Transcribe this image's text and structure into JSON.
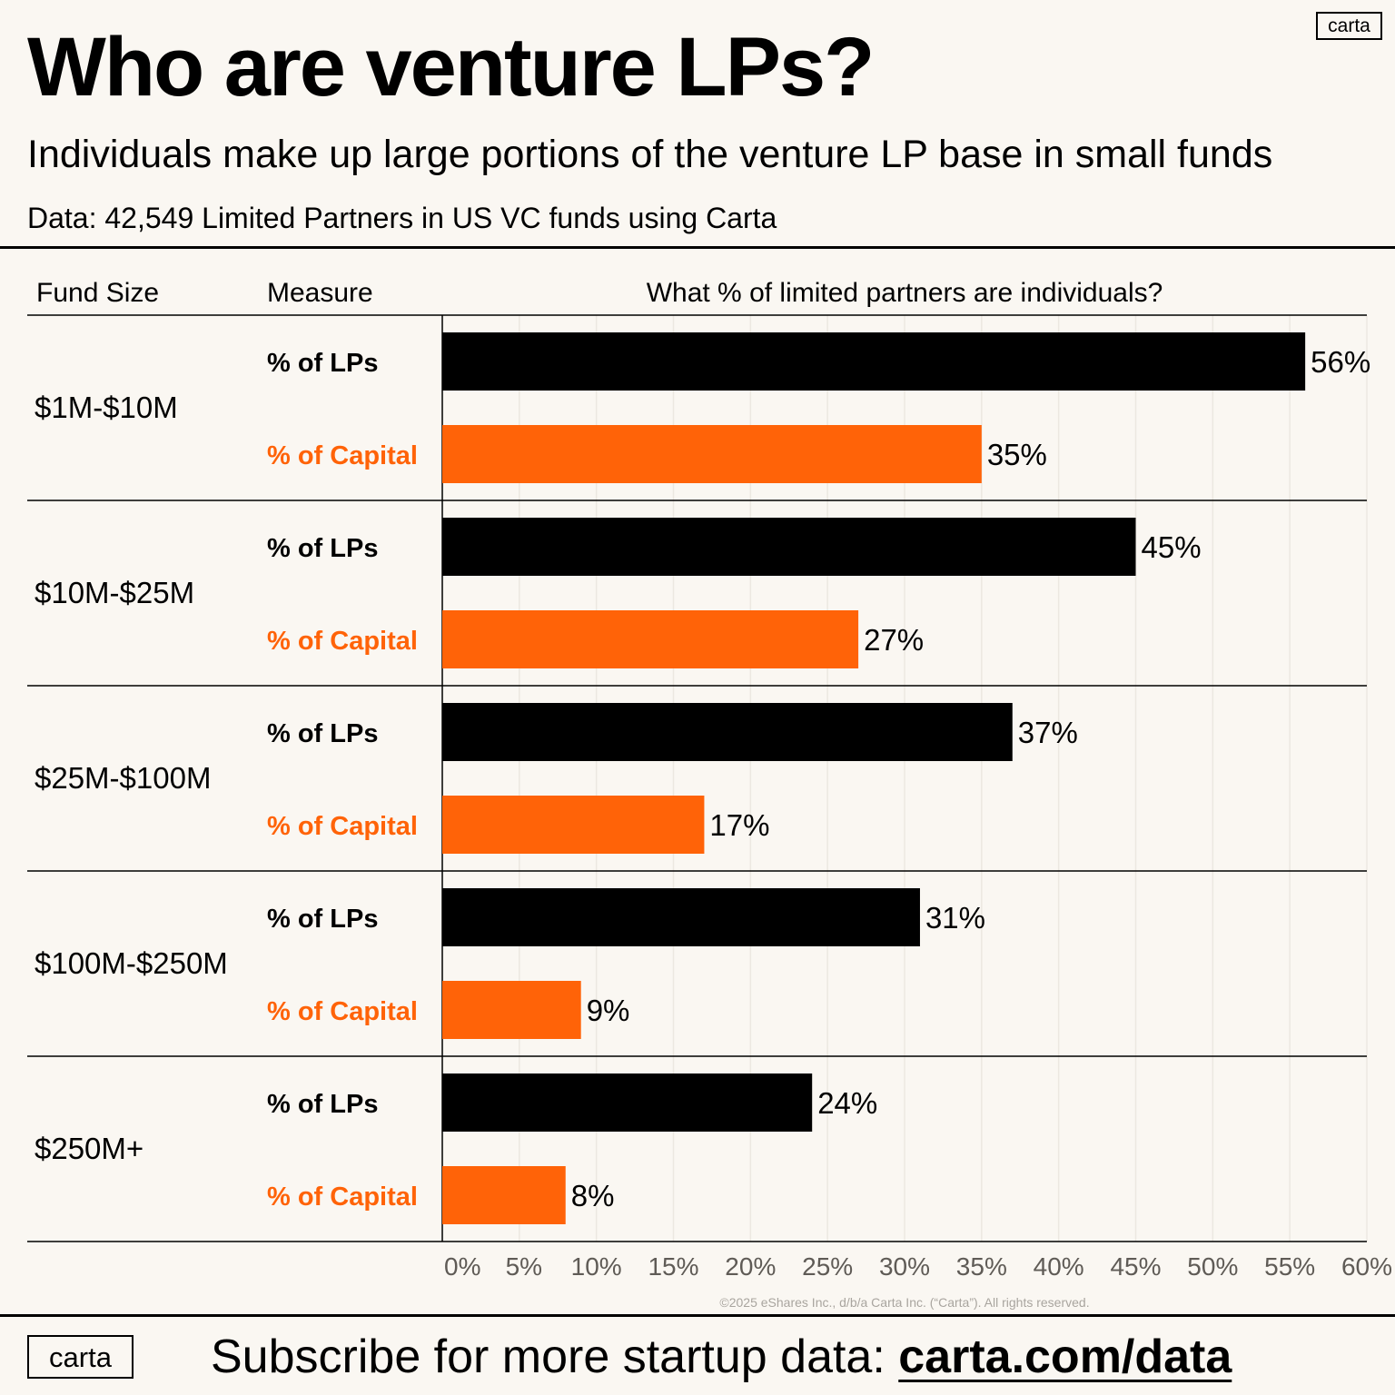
{
  "header": {
    "title": "Who are venture LPs?",
    "subtitle": "Individuals make up large portions of the venture LP base in small funds",
    "source": "Data: 42,549 Limited Partners in US VC funds using Carta",
    "logo": "carta"
  },
  "columns": {
    "fund_size": "Fund Size",
    "measure": "Measure",
    "question": "What % of limited partners are individuals?"
  },
  "footer": {
    "cta_text": "Subscribe for more startup data: ",
    "link_text": "carta.com/data",
    "logo": "carta",
    "copyright": "©2025 eShares Inc., d/b/a Carta Inc. (“Carta”). All rights reserved."
  },
  "colors": {
    "lps": "#000000",
    "capital": "#ff6308",
    "background": "#faf7f2",
    "grid": "#ece8e1",
    "tick": "#5f5b56"
  },
  "chart_data": {
    "type": "bar",
    "orientation": "horizontal",
    "title": "What % of limited partners are individuals?",
    "categories": [
      "$1M-$10M",
      "$10M-$25M",
      "$25M-$100M",
      "$100M-$250M",
      "$250M+"
    ],
    "series": [
      {
        "name": "% of LPs",
        "color": "#000000",
        "values": [
          56,
          45,
          37,
          31,
          24
        ]
      },
      {
        "name": "% of Capital",
        "color": "#ff6308",
        "values": [
          35,
          27,
          17,
          9,
          8
        ]
      }
    ],
    "value_suffix": "%",
    "xlim": [
      0,
      60
    ],
    "xticks": [
      "0%",
      "5%",
      "10%",
      "15%",
      "20%",
      "25%",
      "30%",
      "35%",
      "40%",
      "45%",
      "50%",
      "55%",
      "60%"
    ],
    "xtick_values": [
      0,
      5,
      10,
      15,
      20,
      25,
      30,
      35,
      40,
      45,
      50,
      55,
      60
    ],
    "grid": true
  }
}
